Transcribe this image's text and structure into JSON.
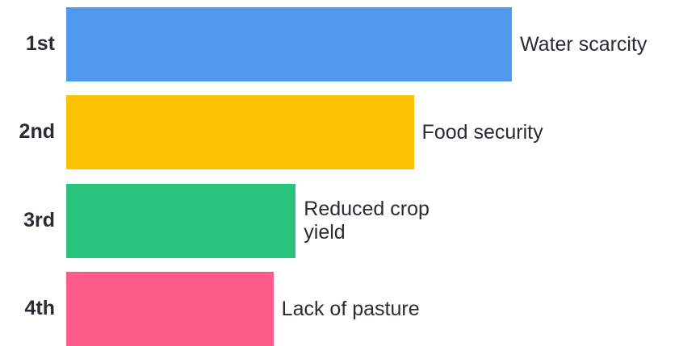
{
  "chart_data": {
    "type": "bar",
    "orientation": "horizontal",
    "categories": [
      "1st",
      "2nd",
      "3rd",
      "4th"
    ],
    "labels": [
      "Water scarcity",
      "Food security",
      "Reduced crop yield",
      "Lack of pasture"
    ],
    "label_lines": [
      [
        "Water scarcity"
      ],
      [
        "Food security"
      ],
      [
        "Reduced crop",
        "yield"
      ],
      [
        "Lack of pasture"
      ]
    ],
    "values": [
      100,
      78,
      51.5,
      46.5
    ],
    "colors": [
      "#4f9aee",
      "#fcc200",
      "#2bc47e",
      "#fd5c8a"
    ],
    "title": "",
    "xlabel": "",
    "ylabel": "",
    "xlim": [
      0,
      100
    ],
    "grid": false,
    "legend": "none"
  }
}
